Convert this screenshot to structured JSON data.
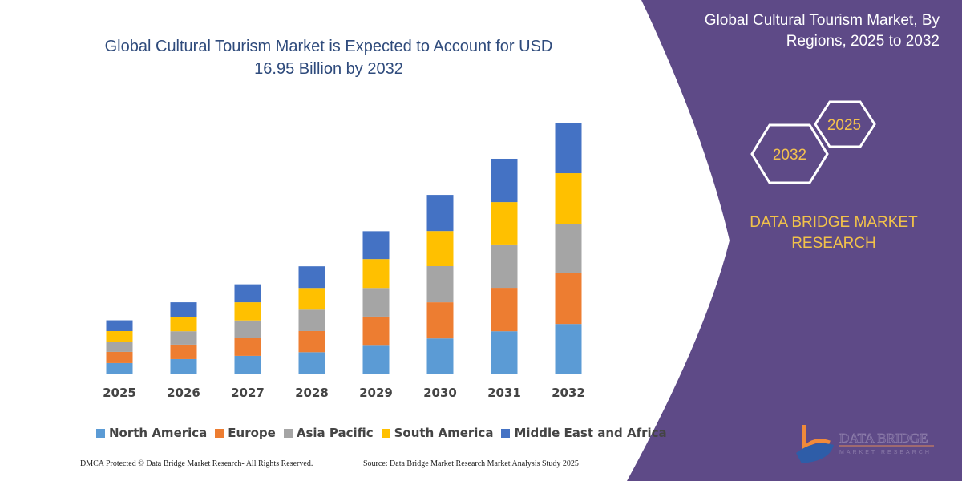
{
  "chart_data": {
    "type": "bar",
    "stacked": true,
    "title": "Global Cultural Tourism Market is Expected to Account for USD 16.95 Billion by 2032",
    "xlabel": "",
    "ylabel": "",
    "ylim": [
      0,
      16.95
    ],
    "grid": false,
    "legend_position": "bottom",
    "categories": [
      "2025",
      "2026",
      "2027",
      "2028",
      "2029",
      "2030",
      "2031",
      "2032"
    ],
    "series": [
      {
        "name": "North America",
        "color": "#5b9bd5",
        "values": [
          0.71,
          0.98,
          1.2,
          1.45,
          1.94,
          2.38,
          2.87,
          3.36
        ]
      },
      {
        "name": "Europe",
        "color": "#ed7d31",
        "values": [
          0.76,
          0.98,
          1.2,
          1.43,
          1.92,
          2.45,
          2.94,
          3.45
        ]
      },
      {
        "name": "Asia Pacific",
        "color": "#a5a5a5",
        "values": [
          0.65,
          0.91,
          1.2,
          1.45,
          1.94,
          2.45,
          2.94,
          3.34
        ]
      },
      {
        "name": "South America",
        "color": "#ffc000",
        "values": [
          0.76,
          0.98,
          1.23,
          1.47,
          1.96,
          2.38,
          2.87,
          3.43
        ]
      },
      {
        "name": "Middle East and Africa",
        "color": "#4472c4",
        "values": [
          0.73,
          0.98,
          1.22,
          1.47,
          1.89,
          2.45,
          2.94,
          3.38
        ]
      }
    ]
  },
  "title_line1": "Global Cultural Tourism Market is Expected to Account for USD",
  "title_line2": "16.95 Billion by 2032",
  "footer": {
    "copyright": "DMCA Protected © Data Bridge Market Research-  All Rights Reserved.",
    "source": "Source: Data Bridge Market Research  Market Analysis Study 2025"
  },
  "side_panel": {
    "color": "#5e4a87",
    "title_line1": "Global Cultural Tourism Market, By",
    "title_line2": "Regions, 2025 to 2032",
    "hex_start": "2025",
    "hex_end": "2032",
    "brand_line1": "DATA BRIDGE MARKET",
    "brand_line2": "RESEARCH",
    "logo_text": "DATA BRIDGE",
    "logo_subtext": "MARKET RESEARCH"
  }
}
